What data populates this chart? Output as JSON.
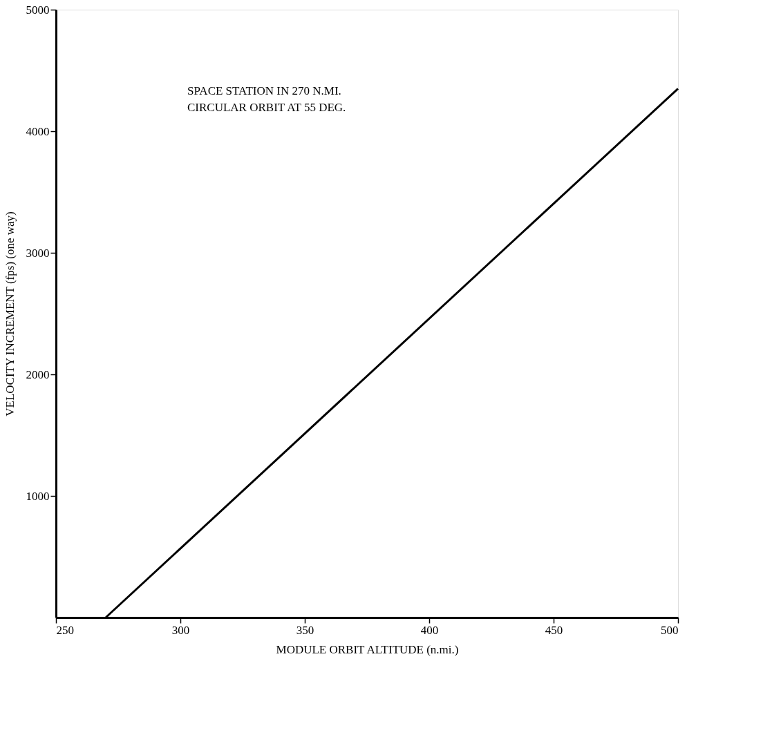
{
  "chart_data": {
    "type": "line",
    "xlabel": "MODULE ORBIT ALTITUDE (n.mi.)",
    "ylabel": "VELOCITY INCREMENT (fps) (one way)",
    "x": [
      270,
      500
    ],
    "series": [
      {
        "color": "#000000",
        "values": [
          0,
          4350
        ]
      }
    ],
    "xlim": [
      250,
      500
    ],
    "xticks": [
      250,
      300,
      350,
      400,
      450,
      500
    ],
    "ylim": [
      0,
      5000
    ],
    "yticks": [
      1000,
      2000,
      3000,
      4000,
      5000
    ],
    "annotations": [
      "SPACE STATION IN 270 N.MI.\nCIRCULAR ORBIT AT 55 DEG."
    ],
    "grid": false,
    "marker": "none",
    "line_style": "solid"
  }
}
